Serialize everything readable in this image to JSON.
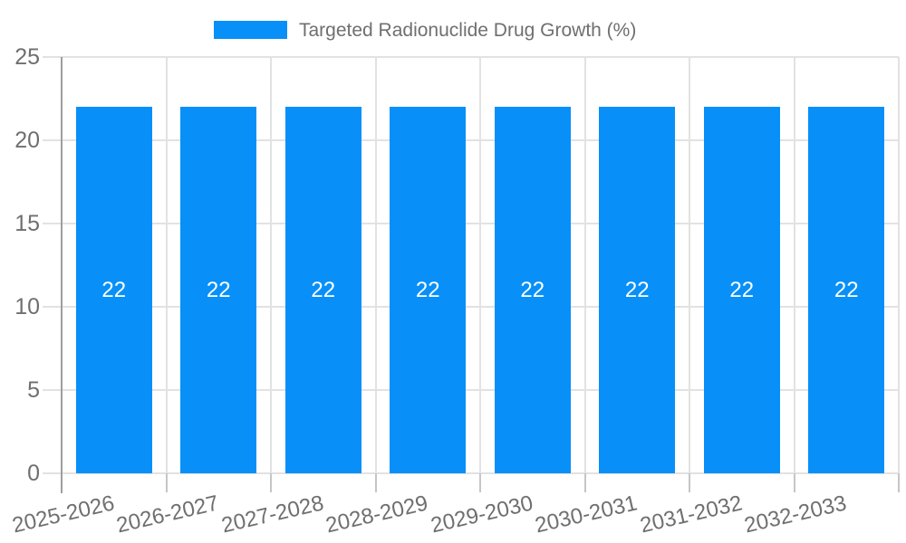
{
  "chart_data": {
    "type": "bar",
    "legend_position": "top",
    "categories": [
      "2025-2026",
      "2026-2027",
      "2027-2028",
      "2028-2029",
      "2029-2030",
      "2030-2031",
      "2031-2032",
      "2032-2033"
    ],
    "series": [
      {
        "name": "Targeted Radionuclide Drug Growth (%)",
        "values": [
          22,
          22,
          22,
          22,
          22,
          22,
          22,
          22
        ]
      }
    ],
    "ylim": [
      0,
      25
    ],
    "yticks": [
      0,
      5,
      10,
      15,
      20,
      25
    ],
    "x_label_rotation_deg": -13,
    "grid": true,
    "colors": {
      "bar": "#0890f8",
      "bar_label": "#ffffff",
      "grid": "#e2e2e2",
      "axis_line": "#9e9e9e",
      "tick": "#c6c6c6",
      "axis_text": "#6f6f6f",
      "legend_text": "#6f6f6f"
    }
  }
}
